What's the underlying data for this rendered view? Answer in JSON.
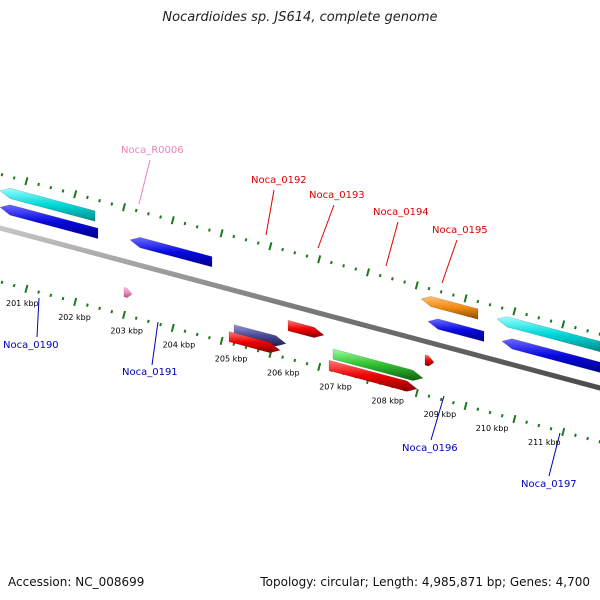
{
  "title": "Nocardioides sp. JS614, complete genome",
  "footer": {
    "accession": "Accession: NC_008699",
    "summary": "Topology: circular; Length: 4,985,871 bp; Genes: 4,700"
  },
  "colors": {
    "backbone": "#8a8a8a",
    "tick_dots": "#1a7a1a",
    "label_pink": "#f080c0",
    "label_red": "#dd0000",
    "label_blue": "#0000bb",
    "blue": "#0808e0",
    "cyan": "#00d8d8",
    "red": "#ee0000",
    "green": "#30c030",
    "purple": "#4a4a9a",
    "orange": "#f08a10",
    "pink": "#f08ac0"
  },
  "ticks": [
    "201 kbp",
    "202 kbp",
    "203 kbp",
    "204 kbp",
    "205 kbp",
    "206 kbp",
    "207 kbp",
    "208 kbp",
    "209 kbp",
    "210 kbp",
    "211 kbp"
  ],
  "genes": [
    {
      "name": "Noca_0190",
      "color": "blue",
      "label_color": "label_blue",
      "side": "below"
    },
    {
      "name": "Noca_0191",
      "color": "blue",
      "label_color": "label_blue",
      "side": "below"
    },
    {
      "name": "Noca_R0006",
      "color": "pink",
      "label_color": "label_pink",
      "side": "above"
    },
    {
      "name": "Noca_0192",
      "color": "purple",
      "label_color": "label_red",
      "side": "above"
    },
    {
      "name": "Noca_0193",
      "color": "red",
      "label_color": "label_red",
      "side": "above"
    },
    {
      "name": "Noca_0194",
      "color": "green",
      "label_color": "label_red",
      "side": "above"
    },
    {
      "name": "Noca_0195",
      "color": "red",
      "label_color": "label_red",
      "side": "above"
    },
    {
      "name": "Noca_0196",
      "color": "blue",
      "label_color": "label_blue",
      "side": "below"
    },
    {
      "name": "Noca_0197",
      "color": "blue",
      "label_color": "label_blue",
      "side": "below"
    }
  ]
}
